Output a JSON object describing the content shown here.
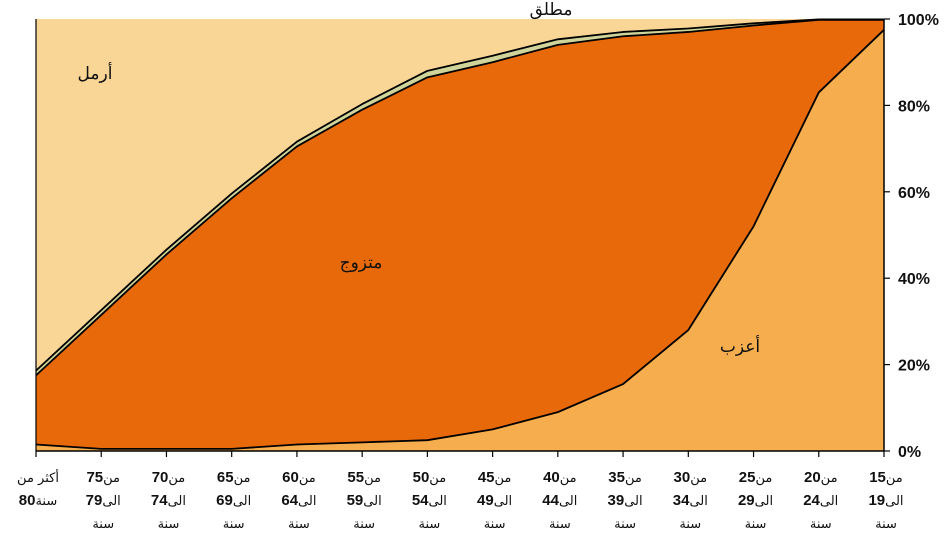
{
  "chart_data": {
    "type": "area",
    "stacked": true,
    "percent": true,
    "title": "",
    "xlabel": "",
    "ylabel": "",
    "ylim": [
      0,
      100
    ],
    "y_ticks": [
      "0%",
      "20%",
      "40%",
      "60%",
      "80%",
      "100%"
    ],
    "y_axis_position": "right",
    "x_direction": "right-to-left",
    "categories": [
      {
        "line1_prefix": "من",
        "line1_num": "15",
        "line2_prefix": "الى",
        "line2_num": "19",
        "line3": "سنة"
      },
      {
        "line1_prefix": "من",
        "line1_num": "20",
        "line2_prefix": "الى",
        "line2_num": "24",
        "line3": "سنة"
      },
      {
        "line1_prefix": "من",
        "line1_num": "25",
        "line2_prefix": "الى",
        "line2_num": "29",
        "line3": "سنة"
      },
      {
        "line1_prefix": "من",
        "line1_num": "30",
        "line2_prefix": "الى",
        "line2_num": "34",
        "line3": "سنة"
      },
      {
        "line1_prefix": "من",
        "line1_num": "35",
        "line2_prefix": "الى",
        "line2_num": "39",
        "line3": "سنة"
      },
      {
        "line1_prefix": "من",
        "line1_num": "40",
        "line2_prefix": "الى",
        "line2_num": "44",
        "line3": "سنة"
      },
      {
        "line1_prefix": "من",
        "line1_num": "45",
        "line2_prefix": "الى",
        "line2_num": "49",
        "line3": "سنة"
      },
      {
        "line1_prefix": "من",
        "line1_num": "50",
        "line2_prefix": "الى",
        "line2_num": "54",
        "line3": "سنة"
      },
      {
        "line1_prefix": "من",
        "line1_num": "55",
        "line2_prefix": "الى",
        "line2_num": "59",
        "line3": "سنة"
      },
      {
        "line1_prefix": "من",
        "line1_num": "60",
        "line2_prefix": "الى",
        "line2_num": "64",
        "line3": "سنة"
      },
      {
        "line1_prefix": "من",
        "line1_num": "65",
        "line2_prefix": "الى",
        "line2_num": "69",
        "line3": "سنة"
      },
      {
        "line1_prefix": "من",
        "line1_num": "70",
        "line2_prefix": "الى",
        "line2_num": "74",
        "line3": "سنة"
      },
      {
        "line1_prefix": "من",
        "line1_num": "75",
        "line2_prefix": "الى",
        "line2_num": "79",
        "line3": "سنة"
      },
      {
        "line1_prefix": "أكثر من",
        "line1_num": "",
        "line2_prefix": "سنة",
        "line2_num": "80",
        "line3": ""
      }
    ],
    "series": [
      {
        "name": "أعزب",
        "color": "#F5AD4E",
        "values": [
          97.5,
          83,
          52,
          28,
          15.5,
          9,
          5,
          2.5,
          2,
          1.5,
          0.5,
          0.5,
          0.5,
          1.5
        ]
      },
      {
        "name": "متزوج",
        "color": "#E8690A",
        "values": [
          2.3,
          16.8,
          46.5,
          69,
          80.5,
          85,
          85,
          84,
          77,
          69,
          58,
          45,
          31,
          16
        ]
      },
      {
        "name": "مطلق",
        "color": "#CFD59A",
        "values": [
          0.1,
          0.1,
          0.5,
          0.8,
          1,
          1.3,
          1.5,
          1.5,
          1.3,
          1.1,
          1.1,
          1.1,
          1.1,
          1.1
        ]
      },
      {
        "name": "أرمل",
        "color": "#F9D596",
        "values": [
          0.1,
          0.1,
          1,
          2.2,
          3,
          4.7,
          8.5,
          12,
          19.7,
          28.4,
          40.4,
          53.4,
          67.4,
          81.4
        ]
      }
    ],
    "grid": false,
    "legend": "none",
    "series_labels_on_chart": true,
    "plot_background": "#F9D596",
    "line_color": "#000000"
  }
}
